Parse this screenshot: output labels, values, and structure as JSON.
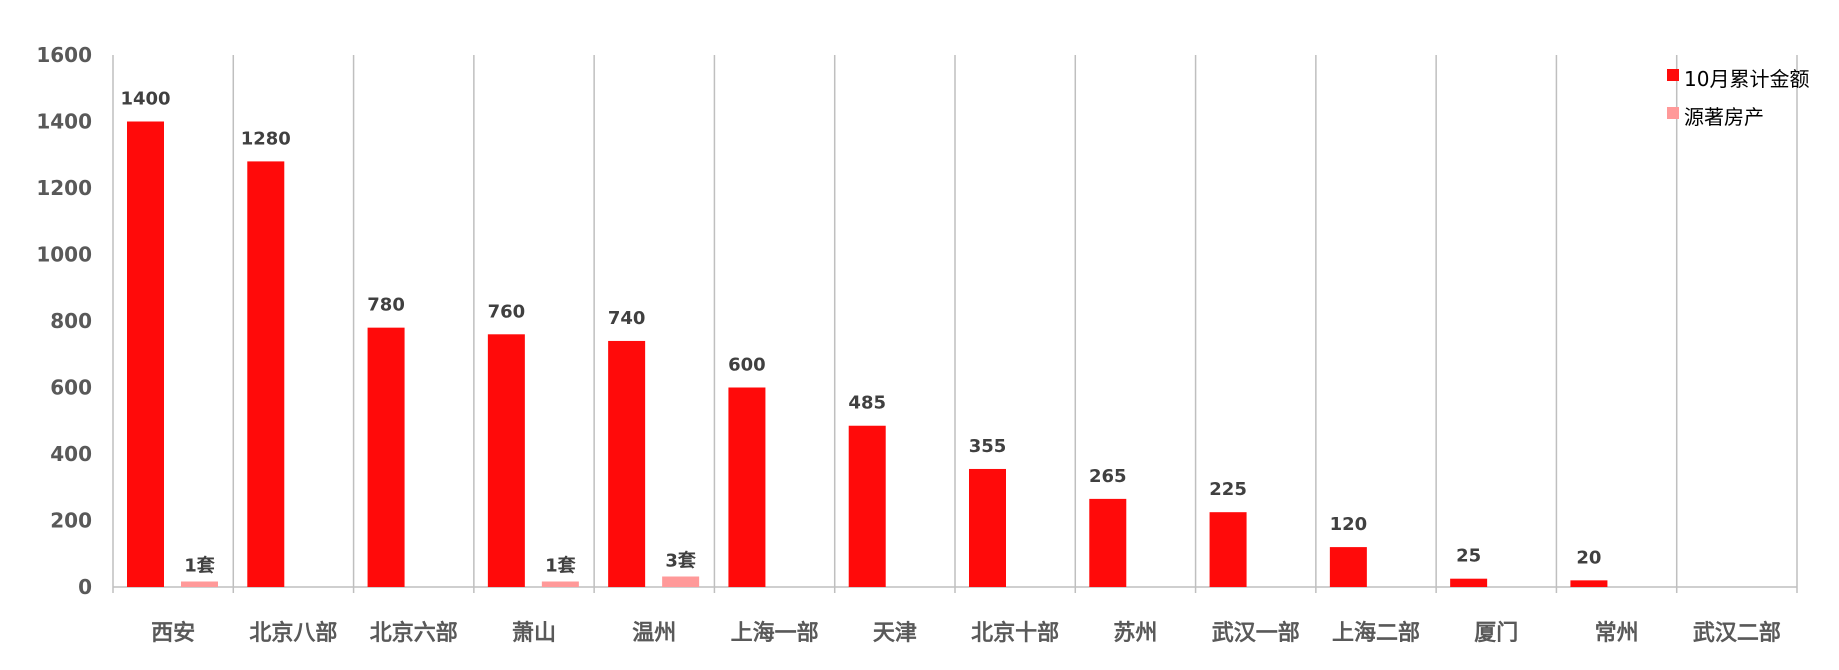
{
  "chart_data": {
    "type": "bar",
    "title": "",
    "xlabel": "",
    "ylabel": "",
    "ylim": [
      0,
      1600
    ],
    "yticks": [
      0,
      200,
      400,
      600,
      800,
      1000,
      1200,
      1400,
      1600
    ],
    "categories": [
      "西安",
      "北京八部",
      "北京六部",
      "萧山",
      "温州",
      "上海一部",
      "天津",
      "北京十部",
      "苏州",
      "武汉一部",
      "上海二部",
      "厦门",
      "常州",
      "武汉二部"
    ],
    "series": [
      {
        "name": "10月累计金额",
        "color": "#FF0A0A",
        "values": [
          1400,
          1280,
          780,
          760,
          740,
          600,
          485,
          355,
          265,
          225,
          120,
          25,
          20,
          0
        ],
        "labels": [
          "1400",
          "1280",
          "780",
          "760",
          "740",
          "600",
          "485",
          "355",
          "265",
          "225",
          "120",
          "25",
          "20",
          ""
        ]
      },
      {
        "name": "源著房产",
        "color": "#FF9999",
        "values": [
          1,
          0,
          0,
          1,
          3,
          0,
          0,
          0,
          0,
          0,
          0,
          0,
          0,
          0
        ],
        "labels": [
          "1套",
          "",
          "",
          "1套",
          "3套",
          "",
          "",
          "",
          "",
          "",
          "",
          "",
          "",
          ""
        ]
      }
    ],
    "grid": "vertical category separators",
    "legend": "top-right"
  }
}
